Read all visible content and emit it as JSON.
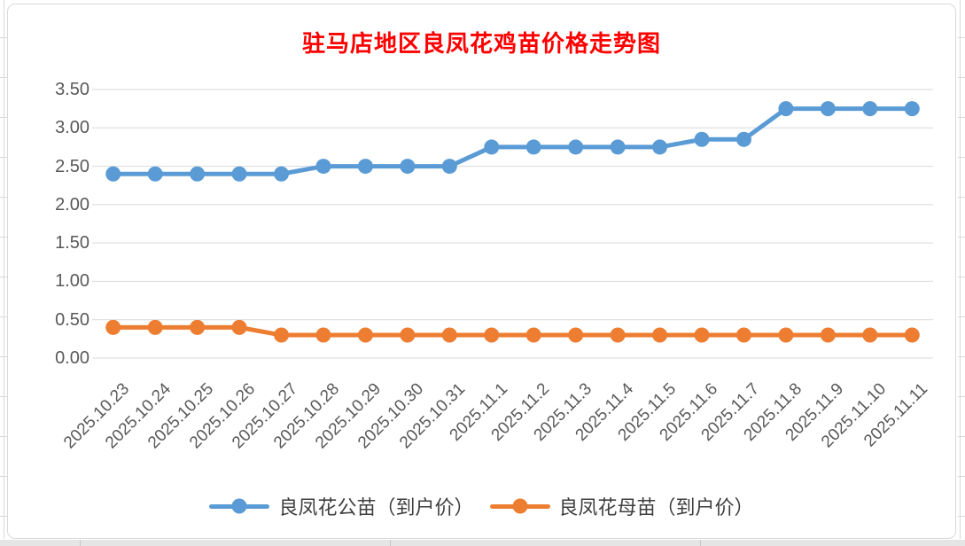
{
  "title": {
    "text": "驻马店地区良凤花鸡苗价格走势图",
    "color": "#FF0000"
  },
  "chart_data": {
    "type": "line",
    "title": "驻马店地区良凤花鸡苗价格走势图",
    "categories": [
      "2025.10.23",
      "2025.10.24",
      "2025.10.25",
      "2025.10.26",
      "2025.10.27",
      "2025.10.28",
      "2025.10.29",
      "2025.10.30",
      "2025.10.31",
      "2025.11.1",
      "2025.11.2",
      "2025.11.3",
      "2025.11.4",
      "2025.11.5",
      "2025.11.6",
      "2025.11.7",
      "2025.11.8",
      "2025.11.9",
      "2025.11.10",
      "2025.11.11"
    ],
    "series": [
      {
        "name": "良凤花公苗（到户价）",
        "color": "#5B9BD5",
        "values": [
          2.4,
          2.4,
          2.4,
          2.4,
          2.4,
          2.5,
          2.5,
          2.5,
          2.5,
          2.75,
          2.75,
          2.75,
          2.75,
          2.75,
          2.85,
          2.85,
          3.25,
          3.25,
          3.25,
          3.25
        ]
      },
      {
        "name": "良凤花母苗（到户价）",
        "color": "#ED7D31",
        "values": [
          0.4,
          0.4,
          0.4,
          0.4,
          0.3,
          0.3,
          0.3,
          0.3,
          0.3,
          0.3,
          0.3,
          0.3,
          0.3,
          0.3,
          0.3,
          0.3,
          0.3,
          0.3,
          0.3,
          0.3
        ]
      }
    ],
    "xlabel": "",
    "ylabel": "",
    "ylim": [
      0,
      3.5
    ],
    "ytick_step": 0.5,
    "ytick_labels": [
      "0.00",
      "0.50",
      "1.00",
      "1.50",
      "2.00",
      "2.50",
      "3.00",
      "3.50"
    ],
    "grid": true,
    "gridline_color": "#D9D9D9",
    "axis_text_color": "#595959",
    "legend_position": "bottom",
    "marker": "circle"
  }
}
